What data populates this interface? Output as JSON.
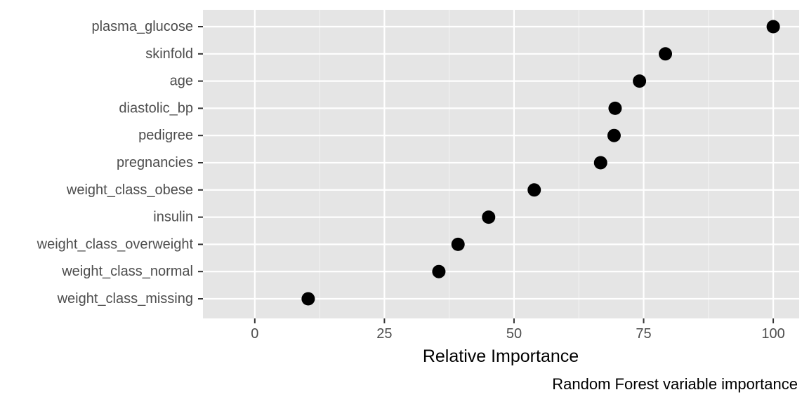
{
  "chart_data": {
    "type": "scatter",
    "orientation": "horizontal-dot",
    "title": "",
    "xlabel": "Relative Importance",
    "ylabel": "",
    "caption": "Random Forest variable importance",
    "xlim": [
      -10,
      105
    ],
    "x_ticks": [
      0,
      25,
      50,
      75,
      100
    ],
    "grid": true,
    "legend": "none",
    "categories": [
      "plasma_glucose",
      "skinfold",
      "age",
      "diastolic_bp",
      "pedigree",
      "pregnancies",
      "weight_class_obese",
      "insulin",
      "weight_class_overweight",
      "weight_class_normal",
      "weight_class_missing"
    ],
    "values": [
      100,
      79.2,
      74.2,
      69.5,
      69.3,
      66.7,
      53.9,
      45.1,
      39.2,
      35.5,
      10.3
    ]
  },
  "colors": {
    "panel_background": "#e5e5e5",
    "grid_major": "#ffffff",
    "grid_minor": "#f2f2f2",
    "point": "#000000",
    "tick_label": "#4d4d4d",
    "tick_mark": "#333333"
  }
}
